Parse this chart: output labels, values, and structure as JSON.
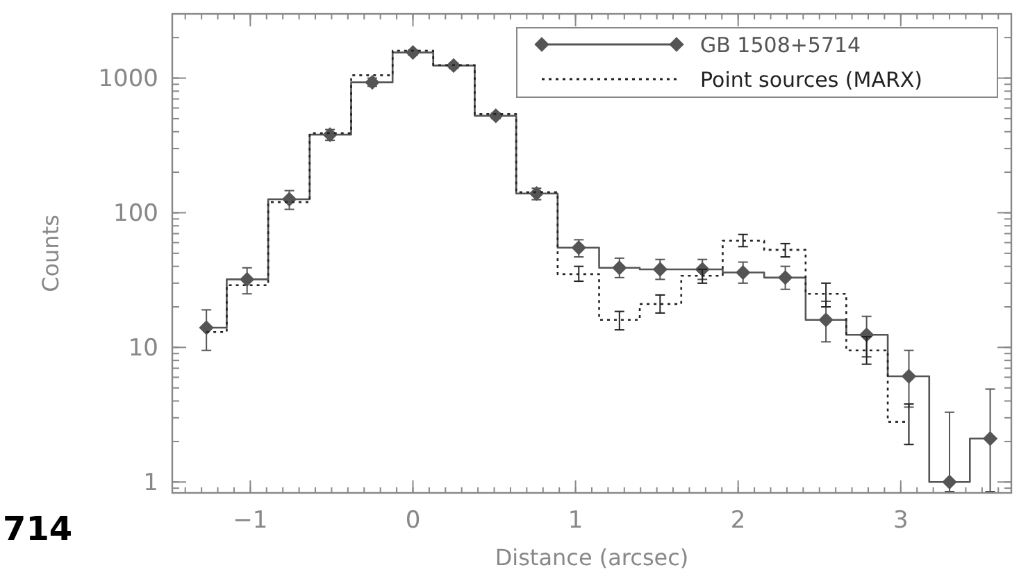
{
  "chart_data": {
    "type": "step",
    "xlabel": "Distance (arcsec)",
    "ylabel": "Counts",
    "x": [
      -1.27,
      -1.02,
      -0.76,
      -0.51,
      -0.25,
      0,
      0.25,
      0.51,
      0.76,
      1.02,
      1.27,
      1.52,
      1.78,
      2.03,
      2.29,
      2.54,
      2.79,
      3.05,
      3.3,
      3.55
    ],
    "series": [
      {
        "name": "GB 1508+5714",
        "color": "#555555",
        "line_style": "solid",
        "marker": "diamond",
        "values": [
          14,
          32,
          126,
          380,
          930,
          1550,
          1240,
          525,
          139,
          55,
          39,
          38,
          38,
          36,
          33,
          16,
          12.4,
          6.1,
          1,
          2.1
        ],
        "errors": [
          [
            9.5,
            19
          ],
          [
            25,
            39
          ],
          [
            106,
            146
          ],
          [
            345,
            415
          ],
          [
            870,
            1000
          ],
          [
            1480,
            1620
          ],
          [
            1180,
            1300
          ],
          [
            500,
            550
          ],
          [
            125,
            152
          ],
          [
            47,
            63
          ],
          [
            33,
            46
          ],
          [
            32,
            45
          ],
          [
            32,
            45
          ],
          [
            30,
            43
          ],
          [
            27,
            40
          ],
          [
            11,
            22
          ],
          [
            8.5,
            17
          ],
          [
            3.6,
            9.5
          ],
          [
            0.85,
            3.3
          ],
          [
            0.85,
            4.9
          ]
        ]
      },
      {
        "name": "Point sources (MARX)",
        "color": "#222222",
        "line_style": "dotted",
        "marker": "none",
        "values": [
          13,
          29,
          120,
          390,
          1050,
          1600,
          1250,
          540,
          142,
          35,
          16,
          21,
          34,
          62,
          53,
          25,
          9.5,
          2.8,
          null,
          null
        ],
        "errors": [
          null,
          null,
          null,
          null,
          null,
          null,
          null,
          null,
          null,
          [
            31,
            40
          ],
          [
            13.5,
            18.5
          ],
          [
            18,
            24.5
          ],
          [
            30,
            38
          ],
          [
            56,
            69
          ],
          [
            47,
            59
          ],
          [
            20,
            30
          ],
          [
            7.5,
            12
          ],
          [
            1.9,
            3.8
          ],
          null,
          null
        ]
      }
    ],
    "log": "y",
    "xlim": [
      -1.48,
      3.68
    ],
    "ylim": [
      0.83,
      3000
    ],
    "xticks": [
      -1,
      0,
      1,
      2,
      3
    ],
    "yticks": [
      1,
      10,
      100,
      1000
    ],
    "legend": "top right",
    "grid": false,
    "annotations": [
      "714"
    ]
  }
}
